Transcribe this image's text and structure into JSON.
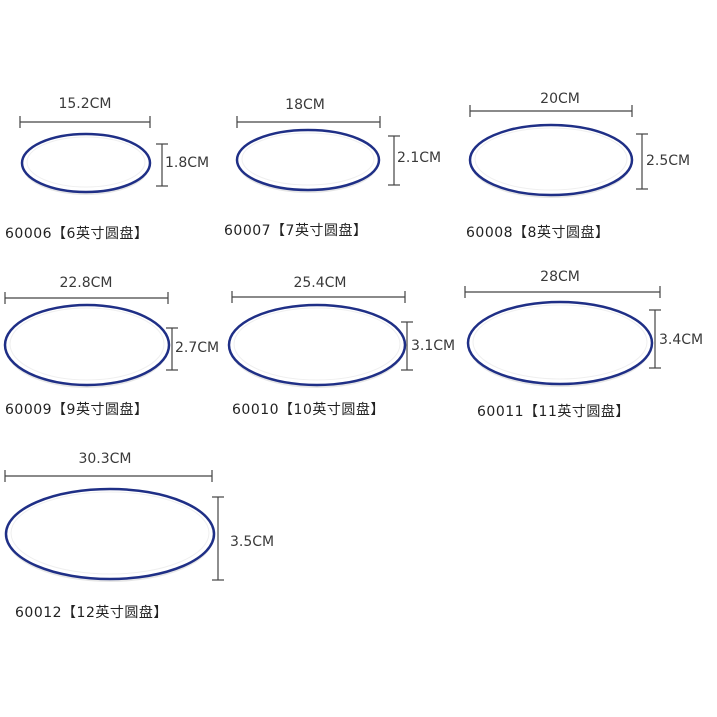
{
  "plates": [
    {
      "width": "15.2CM",
      "height": "1.8CM",
      "caption": "60006【6英寸圆盘】"
    },
    {
      "width": "18CM",
      "height": "2.1CM",
      "caption": "60007【7英寸圆盘】"
    },
    {
      "width": "20CM",
      "height": "2.5CM",
      "caption": "60008【8英寸圆盘】"
    },
    {
      "width": "22.8CM",
      "height": "2.7CM",
      "caption": "60009【9英寸圆盘】"
    },
    {
      "width": "25.4CM",
      "height": "3.1CM",
      "caption": "60010【10英寸圆盘】"
    },
    {
      "width": "28CM",
      "height": "3.4CM",
      "caption": "60011【11英寸圆盘】"
    },
    {
      "width": "30.3CM",
      "height": "3.5CM",
      "caption": "60012【12英寸圆盘】"
    }
  ],
  "colors": {
    "rim": "#1f2f86",
    "dimension_line": "#444444",
    "plate": "#ffffff"
  }
}
